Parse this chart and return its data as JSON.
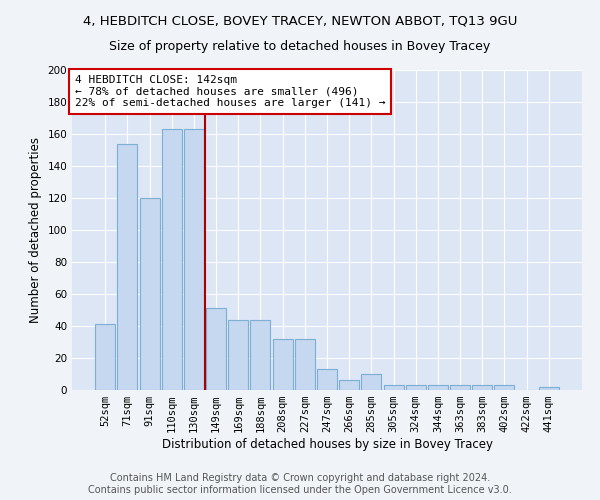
{
  "title": "4, HEBDITCH CLOSE, BOVEY TRACEY, NEWTON ABBOT, TQ13 9GU",
  "subtitle": "Size of property relative to detached houses in Bovey Tracey",
  "xlabel": "Distribution of detached houses by size in Bovey Tracey",
  "ylabel": "Number of detached properties",
  "categories": [
    "52sqm",
    "71sqm",
    "91sqm",
    "110sqm",
    "130sqm",
    "149sqm",
    "169sqm",
    "188sqm",
    "208sqm",
    "227sqm",
    "247sqm",
    "266sqm",
    "285sqm",
    "305sqm",
    "324sqm",
    "344sqm",
    "363sqm",
    "383sqm",
    "402sqm",
    "422sqm",
    "441sqm"
  ],
  "values": [
    41,
    154,
    120,
    163,
    163,
    51,
    44,
    44,
    32,
    32,
    13,
    6,
    10,
    3,
    3,
    3,
    3,
    3,
    3,
    0,
    2
  ],
  "bar_color": "#c5d8ef",
  "bar_edge_color": "#7bafd4",
  "vline_x": 4.5,
  "vline_color": "#aa0000",
  "annotation_line1": "4 HEBDITCH CLOSE: 142sqm",
  "annotation_line2": "← 78% of detached houses are smaller (496)",
  "annotation_line3": "22% of semi-detached houses are larger (141) →",
  "annotation_box_color": "#cc0000",
  "annotation_fill": "#ffffff",
  "ylim": [
    0,
    200
  ],
  "yticks": [
    0,
    20,
    40,
    60,
    80,
    100,
    120,
    140,
    160,
    180,
    200
  ],
  "background_color": "#dce6f5",
  "grid_color": "#ffffff",
  "footer_line1": "Contains HM Land Registry data © Crown copyright and database right 2024.",
  "footer_line2": "Contains public sector information licensed under the Open Government Licence v3.0.",
  "title_fontsize": 9.5,
  "subtitle_fontsize": 9,
  "xlabel_fontsize": 8.5,
  "ylabel_fontsize": 8.5,
  "tick_fontsize": 7.5,
  "annotation_fontsize": 8,
  "footer_fontsize": 7
}
